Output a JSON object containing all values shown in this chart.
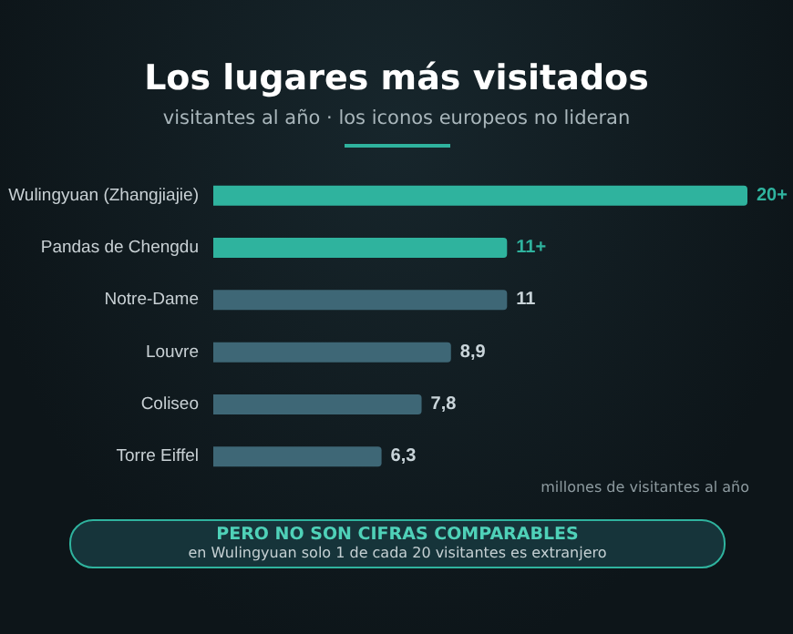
{
  "chart_data": {
    "type": "bar",
    "orientation": "horizontal",
    "title": "Los lugares más visitados",
    "subtitle": "visitantes al año · los iconos europeos no lideran",
    "categories": [
      "Wulingyuan (Zhangjiajie)",
      "Pandas de Chengdu",
      "Notre-Dame",
      "Louvre",
      "Coliseo",
      "Torre Eiffel"
    ],
    "values": [
      20,
      11,
      11,
      8.9,
      7.8,
      6.3
    ],
    "value_labels": [
      "20+",
      "11+",
      "11",
      "8,9",
      "7,8",
      "6,3"
    ],
    "colors": [
      "#2fb39e",
      "#2fb39e",
      "#3e6776",
      "#3e6776",
      "#3e6776",
      "#3e6776"
    ],
    "annotations": [
      "millones de visitantes al año",
      "PERO NO SON CIFRAS COMPARABLES",
      "en Wulingyuan solo 1 de cada 20 visitantes es extranjero"
    ]
  }
}
